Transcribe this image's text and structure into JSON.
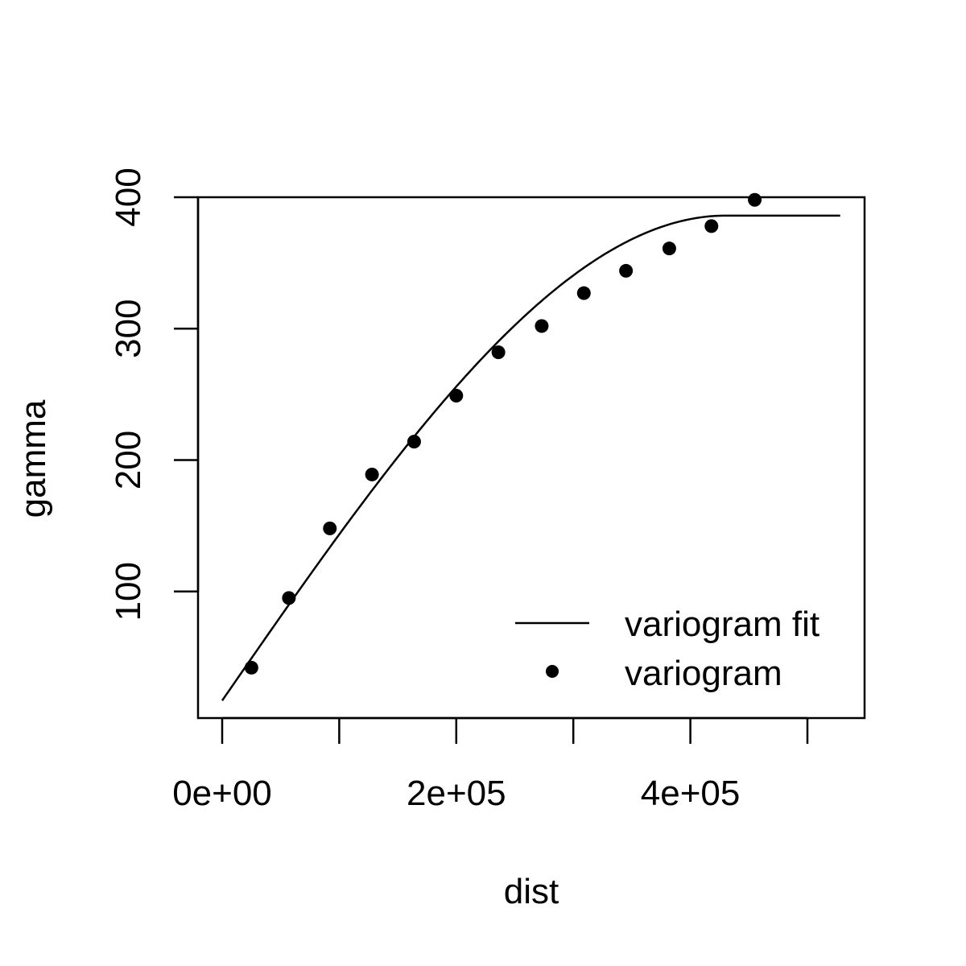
{
  "chart_data": {
    "type": "scatter",
    "title": "",
    "xlabel": "dist",
    "ylabel": "gamma",
    "xlim": [
      -20000,
      550000
    ],
    "ylim": [
      0,
      400
    ],
    "x_ticks": [
      0,
      100000,
      200000,
      300000,
      400000,
      500000
    ],
    "x_tick_labels": [
      "0e+00",
      "",
      "2e+05",
      "",
      "4e+05",
      ""
    ],
    "y_ticks": [
      100,
      200,
      300,
      400
    ],
    "y_tick_labels": [
      "100",
      "200",
      "300",
      "400"
    ],
    "grid": false,
    "legend_position": "bottom-right",
    "series": [
      {
        "name": "variogram fit",
        "kind": "line",
        "model": "spherical",
        "nugget": 17,
        "partial_sill": 369,
        "range": 430000,
        "x_max": 528000
      },
      {
        "name": "variogram",
        "kind": "points",
        "x": [
          25000,
          57000,
          92000,
          128000,
          164000,
          200000,
          236000,
          273000,
          309000,
          345000,
          382000,
          418000,
          455000
        ],
        "y": [
          42,
          95,
          148,
          189,
          214,
          249,
          282,
          302,
          327,
          344,
          361,
          378,
          398
        ]
      }
    ]
  }
}
